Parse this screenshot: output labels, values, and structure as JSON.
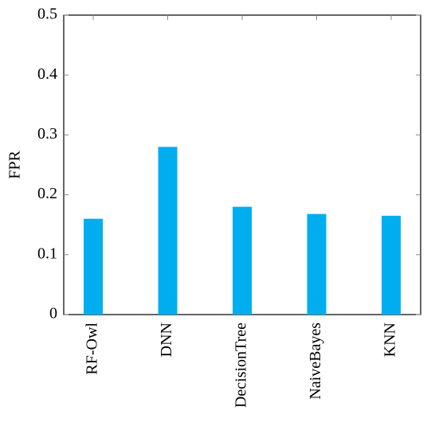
{
  "chart_data": {
    "type": "bar",
    "y_label": "FPR",
    "categories": [
      "RF-Owl",
      "DNN",
      "DecisionTree",
      "NaiveBayes",
      "KNN"
    ],
    "values": [
      0.16,
      0.28,
      0.18,
      0.168,
      0.165
    ],
    "color": "#00aeef",
    "ylim": [
      0,
      0.5
    ],
    "yticks": [
      0,
      0.1,
      0.2,
      0.3,
      0.4,
      0.5
    ],
    "grid": false
  }
}
